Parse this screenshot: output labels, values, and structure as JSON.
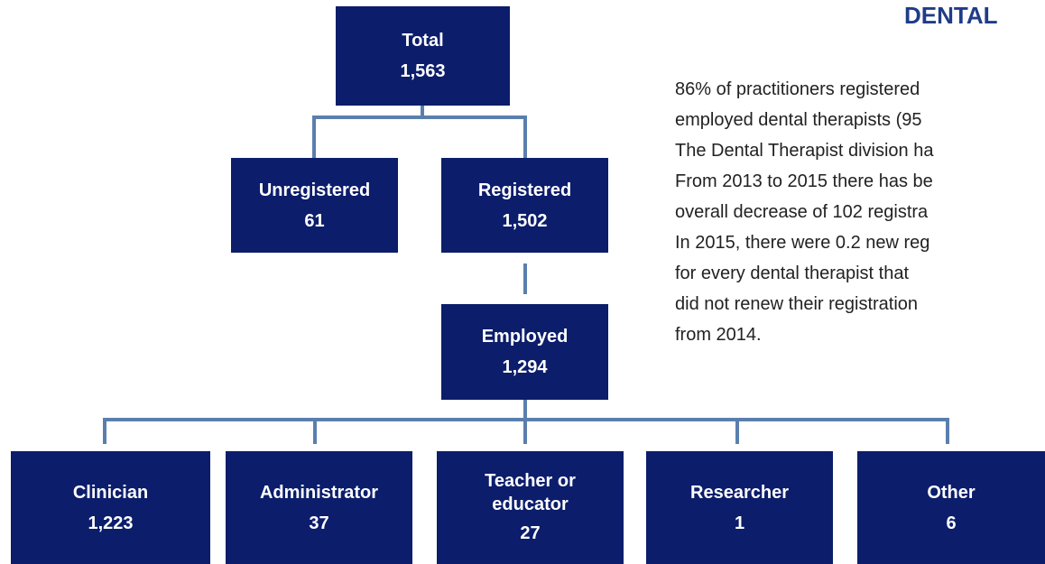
{
  "title": "DENTAL",
  "nodes": [
    {
      "label": "Total",
      "value": "1,563"
    },
    {
      "label": "Unregistered",
      "value": "61"
    },
    {
      "label": "Registered",
      "value": "1,502"
    },
    {
      "label": "Employed",
      "value": "1,294"
    },
    {
      "label": "Clinician",
      "value": "1,223"
    },
    {
      "label": "Administrator",
      "value": "37"
    },
    {
      "label": "Teacher or educator",
      "value": "27"
    },
    {
      "label": "Researcher",
      "value": "1"
    },
    {
      "label": "Other",
      "value": "6"
    }
  ],
  "text_lines": [
    "86% of practitioners registered",
    "employed dental therapists (95",
    "The Dental Therapist division ha",
    "From 2013 to 2015 there has be",
    "overall decrease of 102  registra",
    "In 2015, there were 0.2 new reg",
    "for every dental therapist that",
    "did not renew their registration",
    "from 2014."
  ]
}
